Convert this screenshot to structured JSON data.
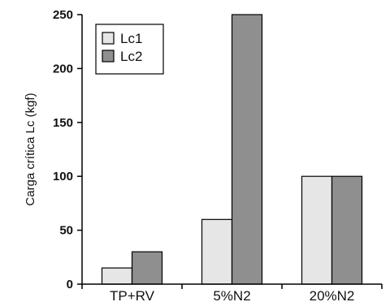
{
  "chart_data": {
    "type": "bar",
    "title": "",
    "xlabel": "",
    "ylabel": "Carga crítica Lc (kgf)",
    "ylim": [
      0,
      250
    ],
    "yticks": [
      0,
      50,
      100,
      150,
      200,
      250
    ],
    "categories": [
      "TP+RV",
      "5%N2",
      "20%N2"
    ],
    "series": [
      {
        "name": "Lc1",
        "values": [
          15,
          60,
          100
        ],
        "color": "#e6e6e6"
      },
      {
        "name": "Lc2",
        "values": [
          30,
          250,
          100
        ],
        "color": "#8f8f8f"
      }
    ],
    "grid": false,
    "legend": "top-left"
  }
}
